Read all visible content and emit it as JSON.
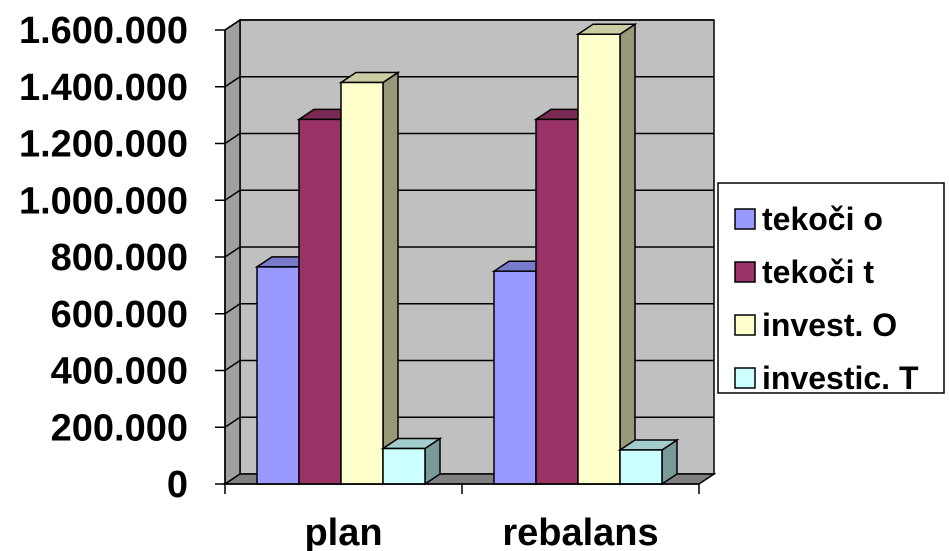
{
  "chart_data": {
    "type": "bar",
    "title": "",
    "xlabel": "",
    "ylabel": "",
    "categories": [
      "plan",
      "rebalans"
    ],
    "series": [
      {
        "name": "tekoči o",
        "values": [
          765000,
          750000
        ],
        "color": "#9999FF"
      },
      {
        "name": "tekoči t",
        "values": [
          1285000,
          1285000
        ],
        "color": "#993366"
      },
      {
        "name": "invest. O",
        "values": [
          1415000,
          1585000
        ],
        "color": "#FFFFCC"
      },
      {
        "name": "investic. T",
        "values": [
          125000,
          120000
        ],
        "color": "#CCFFFF"
      }
    ],
    "ylim": [
      0,
      1600000
    ],
    "y_ticks": [
      "0",
      "200.000",
      "400.000",
      "600.000",
      "800.000",
      "1.000.000",
      "1.200.000",
      "1.400.000",
      "1.600.000"
    ],
    "grid": true,
    "style": "3d-clustered-column",
    "wall_color": "#C0C0C0",
    "legend_position": "right"
  }
}
